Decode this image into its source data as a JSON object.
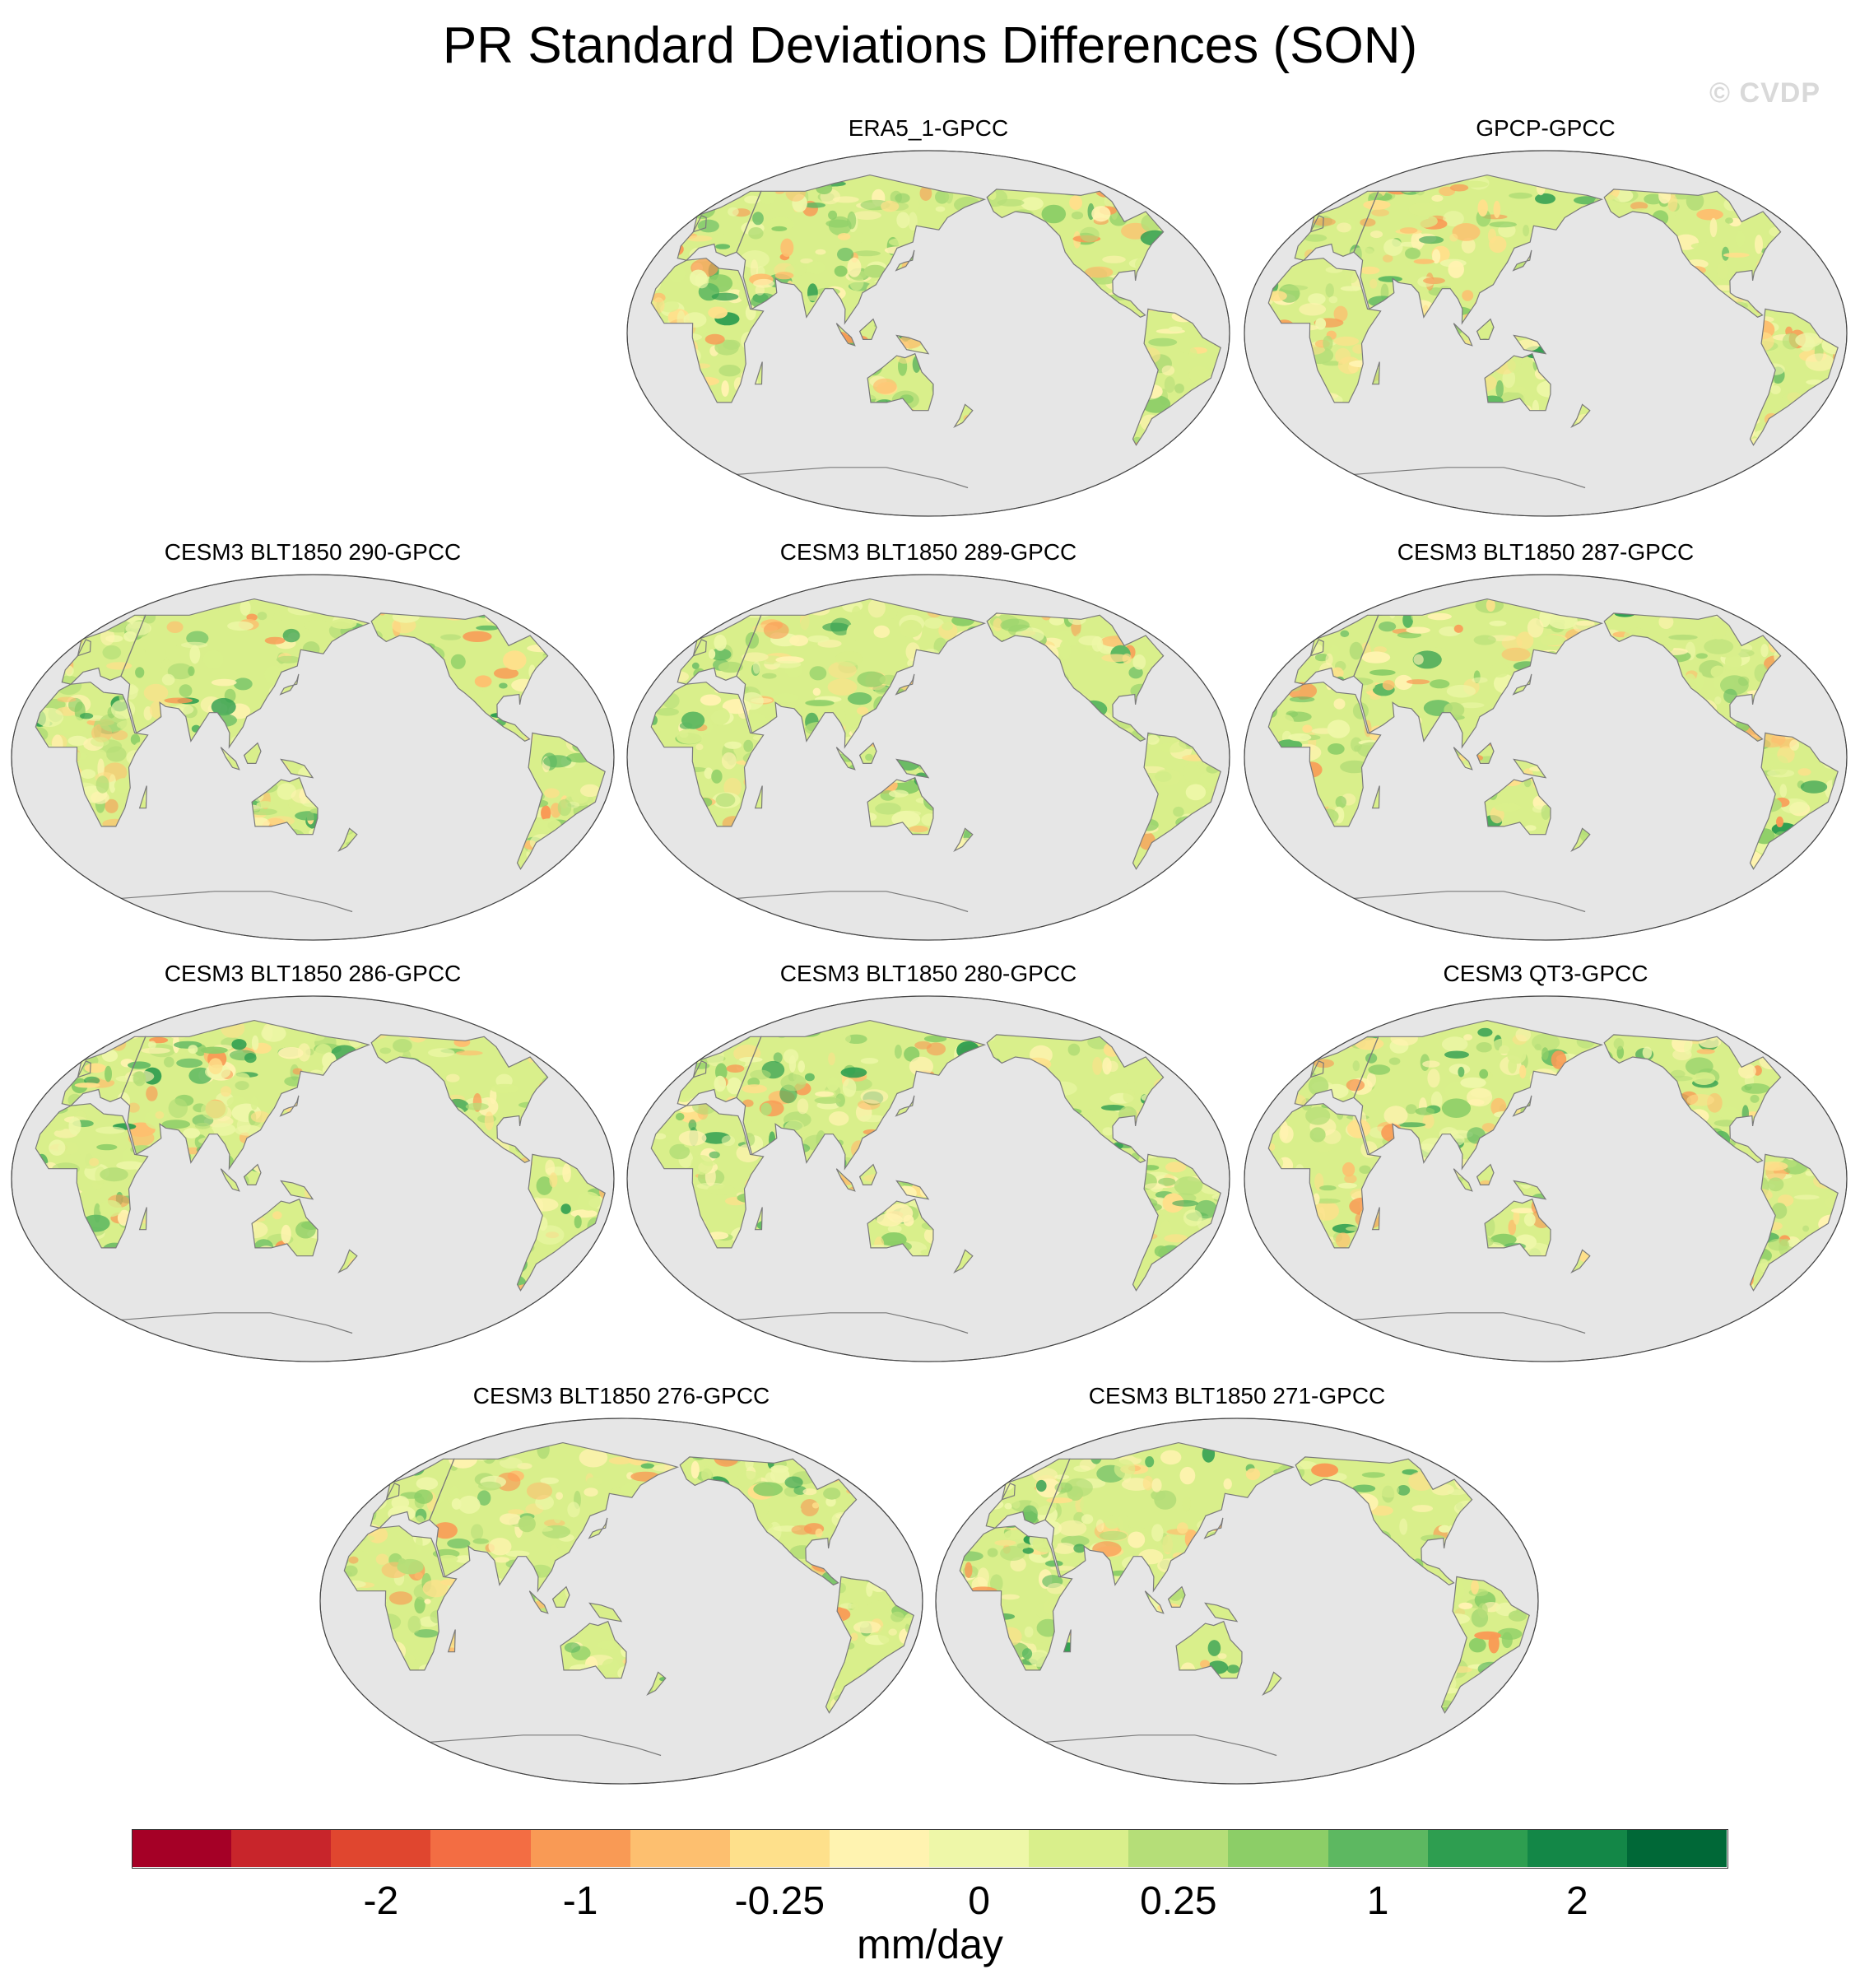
{
  "title": "PR Standard Deviations Differences (SON)",
  "watermark": "© CVDP",
  "panels": [
    {
      "label": "ERA5_1-GPCC",
      "dominant": "mixed"
    },
    {
      "label": "GPCP-GPCC",
      "dominant": "mixed"
    },
    {
      "label": "CESM3 BLT1850 290-GPCC",
      "dominant": "mixed"
    },
    {
      "label": "CESM3 BLT1850 289-GPCC",
      "dominant": "mixed"
    },
    {
      "label": "CESM3 BLT1850 287-GPCC",
      "dominant": "mixed"
    },
    {
      "label": "CESM3 BLT1850 286-GPCC",
      "dominant": "mixed"
    },
    {
      "label": "CESM3 BLT1850 280-GPCC",
      "dominant": "mixed"
    },
    {
      "label": "CESM3 QT3-GPCC",
      "dominant": "mixed"
    },
    {
      "label": "CESM3 BLT1850 276-GPCC",
      "dominant": "mixed"
    },
    {
      "label": "CESM3 BLT1850 271-GPCC",
      "dominant": "mixed"
    }
  ],
  "colorbar": {
    "units": "mm/day",
    "tick_labels": [
      "-2",
      "-1",
      "-0.25",
      "0",
      "0.25",
      "1",
      "2"
    ],
    "colors": [
      "#a50026",
      "#c8252b",
      "#e0462f",
      "#f36d43",
      "#f99a55",
      "#fdbf6f",
      "#fee08b",
      "#fff3b0",
      "#eef7a8",
      "#d9ef8b",
      "#b5de78",
      "#8cce67",
      "#5db861",
      "#2e9e50",
      "#138747",
      "#006837"
    ]
  },
  "map_colors": {
    "ocean": "#e6e6e6",
    "coast": "#7a7a7a",
    "land_base": "#d9ef8b"
  }
}
